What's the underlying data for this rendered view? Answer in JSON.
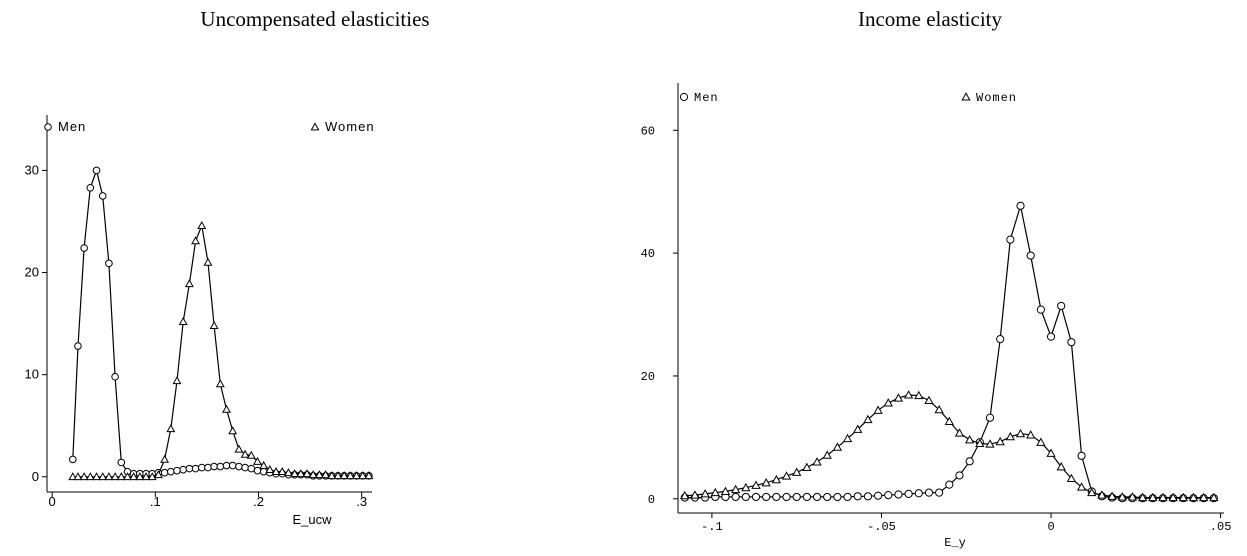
{
  "chart_data": [
    {
      "type": "line",
      "title": "Uncompensated elasticities",
      "xlabel": "E_ucw",
      "ylabel": "",
      "xlim": [
        -0.005,
        0.31
      ],
      "ylim": [
        -1,
        32
      ],
      "xticks": [
        0,
        0.1,
        0.2,
        0.3
      ],
      "xtick_labels": [
        "0",
        ".1",
        ".2",
        ".3"
      ],
      "yticks": [
        0,
        10,
        20,
        30
      ],
      "ytick_labels": [
        "0",
        "10",
        "20",
        "30"
      ],
      "grid": false,
      "legend": "top",
      "series": [
        {
          "name": "Men",
          "marker": "circle",
          "x": [
            0.02,
            0.025,
            0.031,
            0.037,
            0.043,
            0.049,
            0.055,
            0.061,
            0.067,
            0.073,
            0.079,
            0.085,
            0.091,
            0.097,
            0.103,
            0.109,
            0.115,
            0.121,
            0.127,
            0.133,
            0.139,
            0.145,
            0.151,
            0.157,
            0.163,
            0.169,
            0.175,
            0.181,
            0.187,
            0.193,
            0.199,
            0.205,
            0.211,
            0.217,
            0.223,
            0.229,
            0.235,
            0.241,
            0.247,
            0.253,
            0.259,
            0.265,
            0.271,
            0.277,
            0.283,
            0.289,
            0.295,
            0.301,
            0.307
          ],
          "y": [
            1.7,
            12.8,
            22.4,
            28.3,
            30.0,
            27.5,
            20.9,
            9.8,
            1.4,
            0.5,
            0.3,
            0.3,
            0.3,
            0.3,
            0.4,
            0.4,
            0.5,
            0.6,
            0.7,
            0.8,
            0.8,
            0.9,
            0.9,
            1.0,
            1.0,
            1.1,
            1.1,
            1.0,
            0.9,
            0.8,
            0.6,
            0.5,
            0.4,
            0.3,
            0.3,
            0.2,
            0.2,
            0.2,
            0.2,
            0.1,
            0.1,
            0.1,
            0.1,
            0.1,
            0.1,
            0.1,
            0.1,
            0.1,
            0.1
          ]
        },
        {
          "name": "Women",
          "marker": "triangle",
          "x": [
            0.02,
            0.025,
            0.031,
            0.037,
            0.043,
            0.049,
            0.055,
            0.061,
            0.067,
            0.073,
            0.079,
            0.085,
            0.091,
            0.097,
            0.103,
            0.109,
            0.115,
            0.121,
            0.127,
            0.133,
            0.139,
            0.145,
            0.151,
            0.157,
            0.163,
            0.169,
            0.175,
            0.181,
            0.187,
            0.193,
            0.199,
            0.205,
            0.211,
            0.217,
            0.223,
            0.229,
            0.235,
            0.241,
            0.247,
            0.253,
            0.259,
            0.265,
            0.271,
            0.277,
            0.283,
            0.289,
            0.295,
            0.301,
            0.307
          ],
          "y": [
            0.0,
            0.0,
            0.0,
            0.0,
            0.0,
            0.0,
            0.0,
            0.0,
            0.0,
            0.0,
            0.0,
            0.0,
            0.0,
            0.0,
            0.2,
            1.7,
            4.7,
            9.4,
            15.2,
            18.9,
            23.1,
            24.6,
            21.0,
            14.8,
            9.1,
            6.6,
            4.5,
            2.7,
            2.2,
            2.1,
            1.5,
            1.1,
            0.7,
            0.5,
            0.5,
            0.4,
            0.3,
            0.3,
            0.3,
            0.2,
            0.2,
            0.2,
            0.1,
            0.1,
            0.1,
            0.1,
            0.1,
            0.1,
            0.1
          ]
        }
      ]
    },
    {
      "type": "line",
      "title": "Income elasticity",
      "xlabel": "E_y",
      "ylabel": "",
      "xlim": [
        -0.11,
        0.051
      ],
      "ylim": [
        -1.5,
        62
      ],
      "xticks": [
        -0.1,
        -0.05,
        0,
        0.05
      ],
      "xtick_labels": [
        "-.1",
        "-.05",
        "0",
        ".05"
      ],
      "yticks": [
        0,
        20,
        40,
        60
      ],
      "ytick_labels": [
        "0",
        "20",
        "40",
        "60"
      ],
      "grid": false,
      "legend": "top",
      "series": [
        {
          "name": "Men",
          "marker": "circle",
          "x": [
            -0.108,
            -0.105,
            -0.102,
            -0.099,
            -0.096,
            -0.093,
            -0.09,
            -0.087,
            -0.084,
            -0.081,
            -0.078,
            -0.075,
            -0.072,
            -0.069,
            -0.066,
            -0.063,
            -0.06,
            -0.057,
            -0.054,
            -0.051,
            -0.048,
            -0.045,
            -0.042,
            -0.039,
            -0.036,
            -0.033,
            -0.03,
            -0.027,
            -0.024,
            -0.021,
            -0.018,
            -0.015,
            -0.012,
            -0.009,
            -0.006,
            -0.003,
            0.0,
            0.003,
            0.006,
            0.009,
            0.012,
            0.015,
            0.018,
            0.021,
            0.024,
            0.027,
            0.03,
            0.033,
            0.036,
            0.039,
            0.042,
            0.045,
            0.048
          ],
          "y": [
            0.2,
            0.2,
            0.2,
            0.3,
            0.3,
            0.3,
            0.3,
            0.3,
            0.3,
            0.3,
            0.3,
            0.3,
            0.3,
            0.3,
            0.3,
            0.3,
            0.3,
            0.4,
            0.4,
            0.5,
            0.6,
            0.7,
            0.8,
            0.9,
            1.0,
            1.0,
            2.3,
            3.8,
            6.1,
            9.2,
            13.2,
            26.0,
            42.2,
            47.7,
            39.6,
            30.8,
            26.4,
            31.4,
            25.5,
            7.0,
            1.2,
            0.4,
            0.2,
            0.1,
            0.1,
            0.1,
            0.1,
            0.1,
            0.1,
            0.1,
            0.1,
            0.1,
            0.1
          ]
        },
        {
          "name": "Women",
          "marker": "triangle",
          "x": [
            -0.108,
            -0.105,
            -0.102,
            -0.099,
            -0.096,
            -0.093,
            -0.09,
            -0.087,
            -0.084,
            -0.081,
            -0.078,
            -0.075,
            -0.072,
            -0.069,
            -0.066,
            -0.063,
            -0.06,
            -0.057,
            -0.054,
            -0.051,
            -0.048,
            -0.045,
            -0.042,
            -0.039,
            -0.036,
            -0.033,
            -0.03,
            -0.027,
            -0.024,
            -0.021,
            -0.018,
            -0.015,
            -0.012,
            -0.009,
            -0.006,
            -0.003,
            0.0,
            0.003,
            0.006,
            0.009,
            0.012,
            0.015,
            0.018,
            0.021,
            0.024,
            0.027,
            0.03,
            0.033,
            0.036,
            0.039,
            0.042,
            0.045,
            0.048
          ],
          "y": [
            0.5,
            0.6,
            0.8,
            1.0,
            1.2,
            1.5,
            1.8,
            2.2,
            2.6,
            3.1,
            3.7,
            4.3,
            5.1,
            6.0,
            7.1,
            8.4,
            9.8,
            11.3,
            12.9,
            14.4,
            15.6,
            16.4,
            16.9,
            16.8,
            16.0,
            14.5,
            12.6,
            10.7,
            9.6,
            9.0,
            8.9,
            9.3,
            10.1,
            10.6,
            10.4,
            9.2,
            7.4,
            5.2,
            3.3,
            1.9,
            1.0,
            0.6,
            0.4,
            0.3,
            0.3,
            0.2,
            0.2,
            0.2,
            0.2,
            0.2,
            0.2,
            0.2,
            0.2
          ]
        }
      ]
    }
  ]
}
